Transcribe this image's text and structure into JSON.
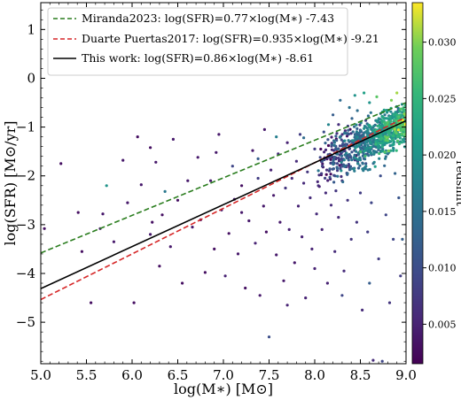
{
  "chart_data": {
    "type": "scatter",
    "xlabel": "log(M∗) [M⊙]",
    "ylabel": "log(SFR) [M⊙/yr]",
    "xlim": [
      5.0,
      9.0
    ],
    "ylim": [
      -5.85,
      1.55
    ],
    "x_ticks": [
      "5.0",
      "5.5",
      "6.0",
      "6.5",
      "7.0",
      "7.5",
      "8.0",
      "8.5",
      "9.0"
    ],
    "y_ticks": [
      "1",
      "0",
      "−1",
      "−2",
      "−3",
      "−4",
      "−5"
    ],
    "x_tick_values": [
      5.0,
      5.5,
      6.0,
      6.5,
      7.0,
      7.5,
      8.0,
      8.5,
      9.0
    ],
    "y_tick_values": [
      1,
      0,
      -1,
      -2,
      -3,
      -4,
      -5
    ],
    "legend_position": "upper-left",
    "colorbar": {
      "label": "redshift",
      "range": [
        0.0015,
        0.0335
      ],
      "ticks": [
        "0.005",
        "0.010",
        "0.015",
        "0.020",
        "0.025",
        "0.030"
      ],
      "tick_values": [
        0.005,
        0.01,
        0.015,
        0.02,
        0.025,
        0.03
      ],
      "colormap": "viridis"
    },
    "lines": [
      {
        "name": "Miranda2023: log(SFR)=0.77×log(M∗) -7.43",
        "slope": 0.77,
        "intercept": -7.43,
        "color": "#2a7d1e",
        "dash": "dashed"
      },
      {
        "name": "Duarte Puertas2017: log(SFR)=0.935×log(M∗) -9.21",
        "slope": 0.935,
        "intercept": -9.21,
        "color": "#d62728",
        "dash": "dashed"
      },
      {
        "name": "This work: log(SFR)=0.86×log(M∗) -8.61",
        "slope": 0.86,
        "intercept": -8.61,
        "color": "#000000",
        "dash": "solid"
      }
    ],
    "scatter_sparse": [
      [
        5.04,
        -3.08,
        0.003
      ],
      [
        5.22,
        -1.75,
        0.003
      ],
      [
        5.41,
        -2.75,
        0.003
      ],
      [
        5.45,
        -3.55,
        0.003
      ],
      [
        5.55,
        -4.6,
        0.003
      ],
      [
        5.68,
        -2.78,
        0.004
      ],
      [
        5.72,
        -2.2,
        0.02
      ],
      [
        5.8,
        -3.35,
        0.004
      ],
      [
        5.9,
        -1.68,
        0.004
      ],
      [
        5.95,
        -2.55,
        0.004
      ],
      [
        6.02,
        -4.6,
        0.003
      ],
      [
        6.06,
        -1.2,
        0.003
      ],
      [
        6.1,
        -2.18,
        0.004
      ],
      [
        6.2,
        -1.42,
        0.003
      ],
      [
        6.22,
        -2.95,
        0.003
      ],
      [
        6.26,
        -1.72,
        0.004
      ],
      [
        6.3,
        -3.85,
        0.003
      ],
      [
        6.33,
        -2.8,
        0.003
      ],
      [
        6.36,
        -2.32,
        0.016
      ],
      [
        6.42,
        -3.45,
        0.004
      ],
      [
        6.45,
        -1.25,
        0.004
      ],
      [
        6.5,
        -2.5,
        0.003
      ],
      [
        6.55,
        -4.2,
        0.003
      ],
      [
        6.61,
        -2.1,
        0.004
      ],
      [
        6.66,
        -3.05,
        0.004
      ],
      [
        6.72,
        -1.62,
        0.004
      ],
      [
        6.75,
        -2.9,
        0.003
      ],
      [
        6.8,
        -3.98,
        0.003
      ],
      [
        6.86,
        -2.1,
        0.004
      ],
      [
        6.9,
        -3.5,
        0.003
      ],
      [
        6.95,
        -1.15,
        0.004
      ],
      [
        6.98,
        -2.7,
        0.004
      ],
      [
        7.02,
        -4.05,
        0.005
      ],
      [
        7.06,
        -3.18,
        0.003
      ],
      [
        7.1,
        -1.8,
        0.009
      ],
      [
        7.12,
        -2.48,
        0.004
      ],
      [
        7.16,
        -3.6,
        0.004
      ],
      [
        7.2,
        -2.2,
        0.003
      ],
      [
        7.24,
        -4.3,
        0.003
      ],
      [
        7.28,
        -2.92,
        0.004
      ],
      [
        7.32,
        -1.48,
        0.004
      ],
      [
        7.35,
        -3.38,
        0.005
      ],
      [
        7.38,
        -2.05,
        0.008
      ],
      [
        7.4,
        -4.45,
        0.004
      ],
      [
        7.44,
        -2.62,
        0.004
      ],
      [
        7.47,
        -3.15,
        0.003
      ],
      [
        7.5,
        -5.3,
        0.01
      ],
      [
        7.52,
        -1.88,
        0.005
      ],
      [
        7.55,
        -2.4,
        0.004
      ],
      [
        7.58,
        -3.62,
        0.004
      ],
      [
        7.6,
        -1.55,
        0.006
      ],
      [
        7.62,
        -2.95,
        0.004
      ],
      [
        7.66,
        -4.15,
        0.004
      ],
      [
        7.68,
        -2.25,
        0.007
      ],
      [
        7.7,
        -1.32,
        0.005
      ],
      [
        7.72,
        -3.1,
        0.005
      ],
      [
        7.75,
        -2.05,
        0.006
      ],
      [
        7.78,
        -3.78,
        0.004
      ],
      [
        7.8,
        -1.7,
        0.006
      ],
      [
        7.82,
        -2.62,
        0.005
      ],
      [
        7.84,
        -1.15,
        0.008
      ],
      [
        7.86,
        -3.25,
        0.005
      ],
      [
        7.88,
        -2.15,
        0.006
      ],
      [
        7.9,
        -4.5,
        0.005
      ],
      [
        7.92,
        -1.92,
        0.007
      ],
      [
        7.95,
        -2.45,
        0.006
      ],
      [
        7.97,
        -3.5,
        0.005
      ],
      [
        8.0,
        -1.45,
        0.008
      ],
      [
        8.02,
        -2.78,
        0.006
      ],
      [
        8.04,
        -2.2,
        0.006
      ],
      [
        8.06,
        -1.62,
        0.009
      ],
      [
        8.08,
        -3.1,
        0.005
      ],
      [
        8.1,
        -1.1,
        0.01
      ],
      [
        8.12,
        -2.35,
        0.006
      ],
      [
        8.14,
        -4.2,
        0.005
      ],
      [
        8.16,
        -1.9,
        0.008
      ],
      [
        8.18,
        -2.6,
        0.006
      ],
      [
        8.2,
        -0.75,
        0.012
      ],
      [
        8.22,
        -3.55,
        0.006
      ],
      [
        8.24,
        -1.55,
        0.01
      ],
      [
        8.26,
        -2.85,
        0.006
      ],
      [
        8.28,
        -0.45,
        0.014
      ],
      [
        8.3,
        -2.1,
        0.007
      ],
      [
        8.32,
        -3.95,
        0.006
      ],
      [
        8.34,
        -1.35,
        0.011
      ],
      [
        8.36,
        -2.5,
        0.007
      ],
      [
        8.38,
        -0.6,
        0.015
      ],
      [
        8.4,
        -3.3,
        0.007
      ],
      [
        8.42,
        -1.85,
        0.009
      ],
      [
        8.44,
        -0.35,
        0.02
      ],
      [
        8.46,
        -2.95,
        0.007
      ],
      [
        8.48,
        -1.2,
        0.012
      ],
      [
        8.5,
        -2.35,
        0.008
      ],
      [
        8.52,
        -4.75,
        0.006
      ],
      [
        8.54,
        -0.3,
        0.022
      ],
      [
        8.56,
        -1.75,
        0.011
      ],
      [
        8.58,
        -3.15,
        0.008
      ],
      [
        8.6,
        -0.5,
        0.02
      ],
      [
        8.62,
        -2.55,
        0.009
      ],
      [
        8.64,
        -5.78,
        0.006
      ],
      [
        8.66,
        -1.4,
        0.014
      ],
      [
        8.68,
        -0.38,
        0.028
      ],
      [
        8.7,
        -3.7,
        0.008
      ],
      [
        8.72,
        -2.0,
        0.01
      ],
      [
        8.74,
        -5.8,
        0.009
      ],
      [
        8.76,
        -0.65,
        0.022
      ],
      [
        8.78,
        -2.8,
        0.009
      ],
      [
        8.8,
        -1.55,
        0.014
      ],
      [
        8.82,
        -4.6,
        0.007
      ],
      [
        8.84,
        -0.45,
        0.03
      ],
      [
        8.86,
        -3.3,
        0.009
      ],
      [
        8.88,
        -1.95,
        0.013
      ],
      [
        8.9,
        -0.3,
        0.031
      ],
      [
        8.92,
        -2.45,
        0.011
      ],
      [
        8.94,
        -4.05,
        0.008
      ],
      [
        8.96,
        -3.3,
        0.012
      ],
      [
        8.98,
        -1.3,
        0.02
      ],
      [
        7.58,
        -1.2,
        0.017
      ],
      [
        7.38,
        -1.65,
        0.012
      ],
      [
        7.88,
        -1.22,
        0.014
      ],
      [
        8.15,
        -0.95,
        0.018
      ],
      [
        6.92,
        -1.52,
        0.004
      ],
      [
        7.2,
        -2.75,
        0.004
      ],
      [
        7.45,
        -1.05,
        0.004
      ],
      [
        8.6,
        -4.2,
        0.012
      ],
      [
        8.3,
        -4.45,
        0.009
      ],
      [
        8.0,
        -3.9,
        0.005
      ],
      [
        7.7,
        -4.65,
        0.005
      ],
      [
        6.2,
        -3.2,
        0.004
      ],
      [
        5.65,
        -3.08,
        0.004
      ]
    ],
    "scatter_cloud": {
      "x_range": [
        8.0,
        9.0
      ],
      "center_y_at_x": [
        [
          8.0,
          -1.85
        ],
        [
          9.0,
          -0.9
        ]
      ],
      "spread": 0.35,
      "color_trend": "redshift increases with mass"
    }
  }
}
